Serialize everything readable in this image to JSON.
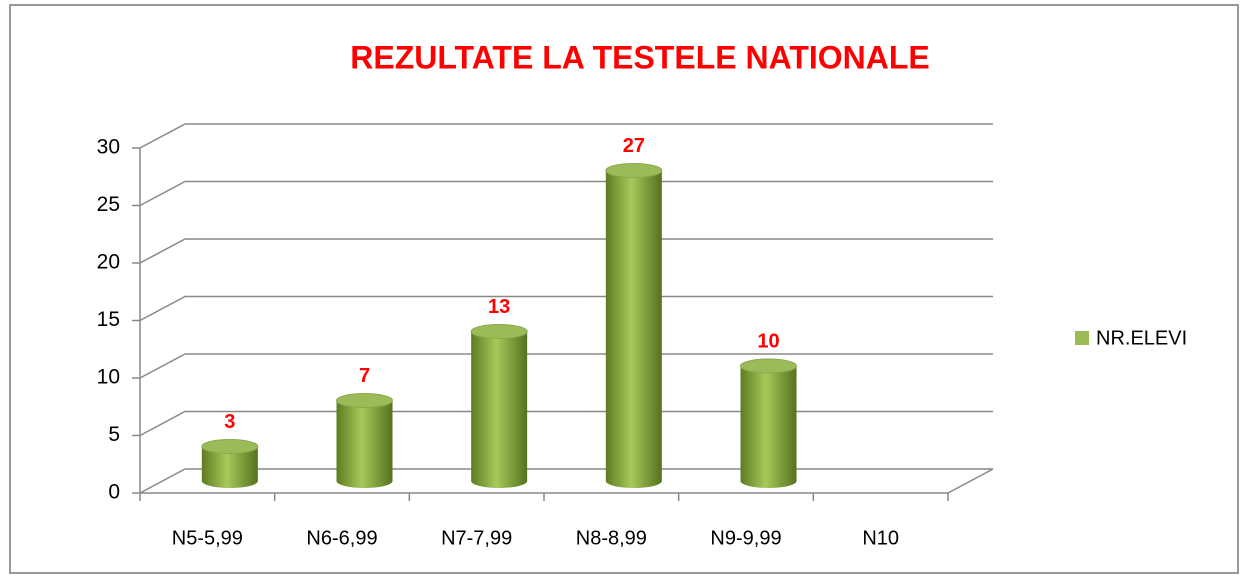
{
  "chart_data": {
    "type": "bar3d",
    "title": "REZULTATE LA TESTELE NATIONALE",
    "categories": [
      "N5-5,99",
      "N6-6,99",
      "N7-7,99",
      "N8-8,99",
      "N9-9,99",
      "N10"
    ],
    "series": [
      {
        "name": "NR.ELEVI",
        "color": "#9bbb59",
        "values": [
          3,
          7,
          13,
          27,
          10,
          null
        ]
      }
    ],
    "ylim": [
      0,
      30
    ],
    "yticks": [
      0,
      5,
      10,
      15,
      20,
      25,
      30
    ],
    "grid": true,
    "legend": "right"
  }
}
